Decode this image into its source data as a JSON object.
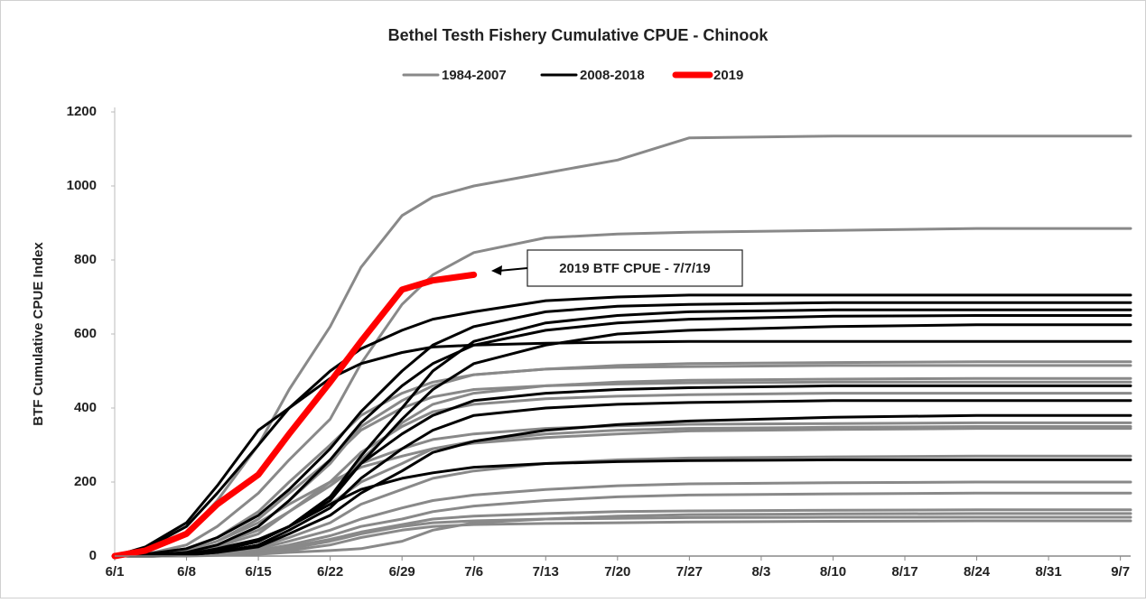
{
  "chart_data": {
    "type": "line",
    "title": "Bethel Testh Fishery Cumulative CPUE - Chinook",
    "y_label": "BTF Cumulative CPUE Index",
    "x": [
      0,
      3,
      7,
      10,
      14,
      17,
      21,
      24,
      28,
      31,
      35,
      42,
      49,
      56,
      70,
      84,
      99
    ],
    "xlim": [
      0,
      99
    ],
    "xticks": [
      {
        "value": 0,
        "label": "6/1"
      },
      {
        "value": 7,
        "label": "6/8"
      },
      {
        "value": 14,
        "label": "6/15"
      },
      {
        "value": 21,
        "label": "6/22"
      },
      {
        "value": 28,
        "label": "6/29"
      },
      {
        "value": 35,
        "label": "7/6"
      },
      {
        "value": 42,
        "label": "7/13"
      },
      {
        "value": 49,
        "label": "7/20"
      },
      {
        "value": 56,
        "label": "7/27"
      },
      {
        "value": 63,
        "label": "8/3"
      },
      {
        "value": 70,
        "label": "8/10"
      },
      {
        "value": 77,
        "label": "8/17"
      },
      {
        "value": 84,
        "label": "8/24"
      },
      {
        "value": 91,
        "label": "8/31"
      },
      {
        "value": 98,
        "label": "9/7"
      }
    ],
    "ylim": [
      0,
      1200
    ],
    "yticks": [
      0,
      200,
      400,
      600,
      800,
      1000,
      1200
    ],
    "grid": false,
    "legend": "top",
    "series": [
      {
        "name": "1984-2007",
        "color": "#898989",
        "lines": [
          [
            0,
            15,
            60,
            150,
            300,
            450,
            620,
            780,
            920,
            970,
            1000,
            1035,
            1070,
            1130,
            1135,
            1135,
            1135
          ],
          [
            0,
            5,
            30,
            80,
            170,
            260,
            370,
            520,
            680,
            760,
            820,
            860,
            870,
            875,
            880,
            885,
            885
          ],
          [
            0,
            2,
            10,
            30,
            80,
            150,
            250,
            350,
            420,
            460,
            490,
            505,
            515,
            520,
            523,
            525,
            525
          ],
          [
            0,
            5,
            20,
            50,
            120,
            200,
            300,
            380,
            440,
            470,
            490,
            505,
            510,
            512,
            515,
            515,
            515
          ],
          [
            0,
            0,
            5,
            15,
            40,
            80,
            160,
            260,
            360,
            410,
            440,
            460,
            470,
            475,
            478,
            480,
            480
          ],
          [
            0,
            3,
            15,
            40,
            100,
            170,
            260,
            340,
            400,
            430,
            450,
            460,
            465,
            468,
            470,
            470,
            470
          ],
          [
            0,
            2,
            10,
            25,
            60,
            120,
            200,
            280,
            350,
            390,
            410,
            425,
            432,
            436,
            440,
            440,
            440
          ],
          [
            0,
            2,
            10,
            30,
            70,
            120,
            190,
            250,
            290,
            315,
            330,
            345,
            352,
            356,
            358,
            360,
            360
          ],
          [
            0,
            0,
            5,
            15,
            40,
            80,
            140,
            200,
            250,
            290,
            310,
            330,
            340,
            345,
            348,
            350,
            350
          ],
          [
            0,
            3,
            15,
            40,
            90,
            140,
            200,
            240,
            270,
            290,
            305,
            320,
            330,
            338,
            342,
            345,
            345
          ],
          [
            0,
            0,
            3,
            10,
            25,
            50,
            90,
            140,
            180,
            210,
            230,
            250,
            260,
            265,
            268,
            270,
            270
          ],
          [
            0,
            0,
            2,
            8,
            20,
            40,
            70,
            100,
            130,
            150,
            165,
            180,
            190,
            195,
            198,
            200,
            200
          ],
          [
            0,
            0,
            2,
            5,
            15,
            30,
            55,
            80,
            100,
            120,
            135,
            150,
            160,
            165,
            168,
            170,
            170
          ],
          [
            0,
            0,
            2,
            5,
            12,
            25,
            45,
            65,
            85,
            100,
            108,
            115,
            120,
            122,
            124,
            125,
            125
          ],
          [
            0,
            0,
            0,
            2,
            5,
            10,
            15,
            20,
            40,
            70,
            90,
            100,
            108,
            112,
            114,
            115,
            115
          ],
          [
            0,
            0,
            1,
            3,
            8,
            20,
            40,
            60,
            80,
            90,
            95,
            100,
            102,
            104,
            105,
            105,
            105
          ],
          [
            0,
            0,
            1,
            3,
            8,
            15,
            30,
            50,
            70,
            80,
            85,
            88,
            90,
            92,
            94,
            95,
            95
          ]
        ]
      },
      {
        "name": "2008-2018",
        "color": "#000000",
        "lines": [
          [
            0,
            20,
            80,
            170,
            300,
            400,
            500,
            560,
            610,
            640,
            660,
            690,
            700,
            705,
            705,
            705,
            705
          ],
          [
            0,
            5,
            20,
            50,
            110,
            180,
            290,
            390,
            500,
            570,
            620,
            660,
            675,
            680,
            685,
            685,
            685
          ],
          [
            0,
            0,
            5,
            20,
            45,
            80,
            160,
            270,
            400,
            500,
            580,
            630,
            650,
            660,
            665,
            665,
            665
          ],
          [
            0,
            2,
            10,
            30,
            80,
            150,
            260,
            360,
            460,
            520,
            570,
            610,
            630,
            640,
            648,
            650,
            650
          ],
          [
            0,
            0,
            5,
            15,
            40,
            80,
            150,
            250,
            370,
            450,
            520,
            570,
            600,
            610,
            620,
            625,
            625
          ],
          [
            0,
            25,
            90,
            190,
            340,
            400,
            480,
            520,
            550,
            565,
            570,
            575,
            578,
            580,
            580,
            580,
            580
          ],
          [
            0,
            0,
            5,
            15,
            40,
            80,
            160,
            250,
            330,
            380,
            420,
            440,
            450,
            455,
            460,
            460,
            460
          ],
          [
            0,
            0,
            3,
            10,
            30,
            70,
            130,
            210,
            290,
            340,
            380,
            400,
            410,
            415,
            420,
            420,
            420
          ],
          [
            0,
            0,
            3,
            10,
            25,
            60,
            110,
            170,
            230,
            280,
            310,
            340,
            355,
            365,
            375,
            380,
            380
          ],
          [
            0,
            0,
            5,
            15,
            40,
            80,
            140,
            180,
            210,
            225,
            240,
            250,
            255,
            258,
            260,
            260,
            260
          ]
        ]
      },
      {
        "name": "2019",
        "color": "#ff0000",
        "lines": [
          [
            0,
            15,
            60,
            140,
            220,
            330,
            470,
            580,
            720,
            745,
            760,
            null,
            null,
            null,
            null,
            null,
            null
          ]
        ]
      }
    ],
    "annotations": [
      {
        "text": "2019 BTF CPUE - 7/7/19"
      }
    ]
  }
}
